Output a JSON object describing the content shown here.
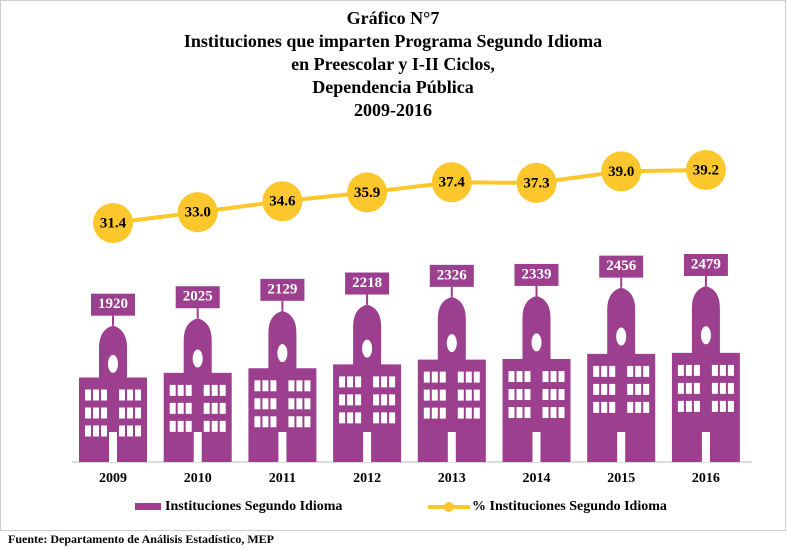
{
  "chart_data": {
    "type": "pictorial-bar-line",
    "title": [
      "Gráfico N°7",
      "Instituciones que imparten Programa Segundo Idioma",
      "en Preescolar y I-II Ciclos,",
      "Dependencia Pública",
      "2009-2016"
    ],
    "categories": [
      "2009",
      "2010",
      "2011",
      "2012",
      "2013",
      "2014",
      "2015",
      "2016"
    ],
    "series": [
      {
        "name": "Instituciones Segundo Idioma",
        "color": "#9b3f8e",
        "values": [
          1920,
          2025,
          2129,
          2218,
          2326,
          2339,
          2456,
          2479
        ]
      },
      {
        "name": "% Instituciones Segundo Idioma",
        "color": "#fcc72c",
        "values": [
          31.4,
          33.0,
          34.6,
          35.9,
          37.4,
          37.3,
          39.0,
          39.2
        ],
        "value_labels": [
          "31.4",
          "33.0",
          "34.6",
          "35.9",
          "37.4",
          "37.3",
          "39.0",
          "39.2"
        ]
      }
    ],
    "source": "Fuente:  Departamento  de Análisis Estadístico,  MEP"
  }
}
